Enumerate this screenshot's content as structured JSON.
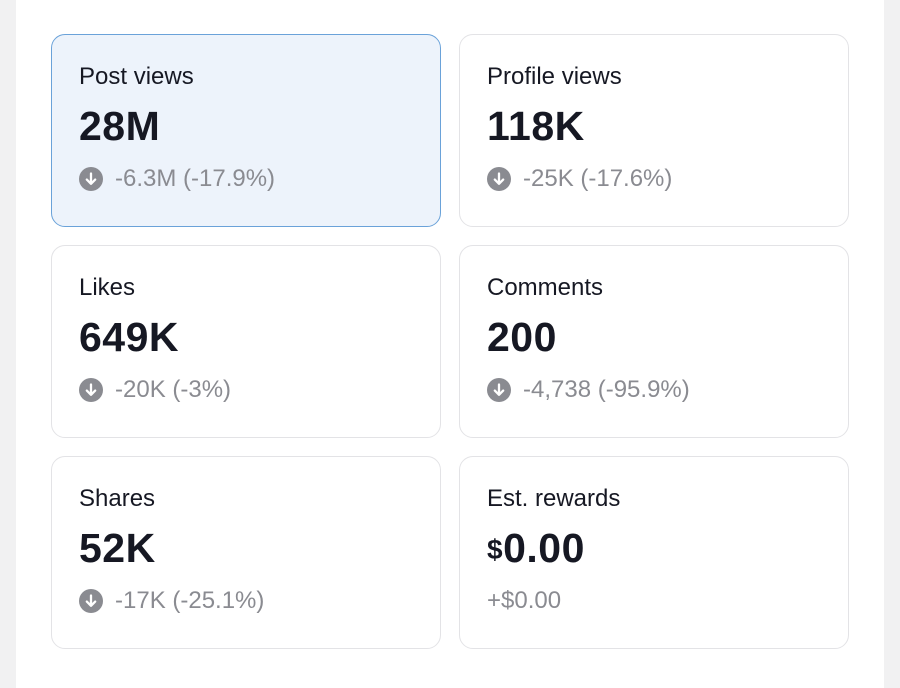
{
  "colors": {
    "text_primary": "#161823",
    "text_secondary": "#8a8b91",
    "selected_background": "#edf3fb",
    "selected_border": "#6aa2d9",
    "card_border": "#e3e3e6",
    "down_icon": "#8a8b91"
  },
  "icons": {
    "change_indicator": "arrow-down-circle-icon"
  },
  "metrics": [
    {
      "label": "Post views",
      "value": "28M",
      "change": "-6.3M (-17.9%)",
      "trend": "down",
      "selected": true
    },
    {
      "label": "Profile views",
      "value": "118K",
      "change": "-25K (-17.6%)",
      "trend": "down",
      "selected": false
    },
    {
      "label": "Likes",
      "value": "649K",
      "change": "-20K (-3%)",
      "trend": "down",
      "selected": false
    },
    {
      "label": "Comments",
      "value": "200",
      "change": "-4,738 (-95.9%)",
      "trend": "down",
      "selected": false
    },
    {
      "label": "Shares",
      "value": "52K",
      "change": "-17K (-25.1%)",
      "trend": "down",
      "selected": false
    },
    {
      "label": "Est. rewards",
      "currency_symbol": "$",
      "value": "0.00",
      "change": "+$0.00",
      "trend": "up",
      "selected": false
    }
  ]
}
